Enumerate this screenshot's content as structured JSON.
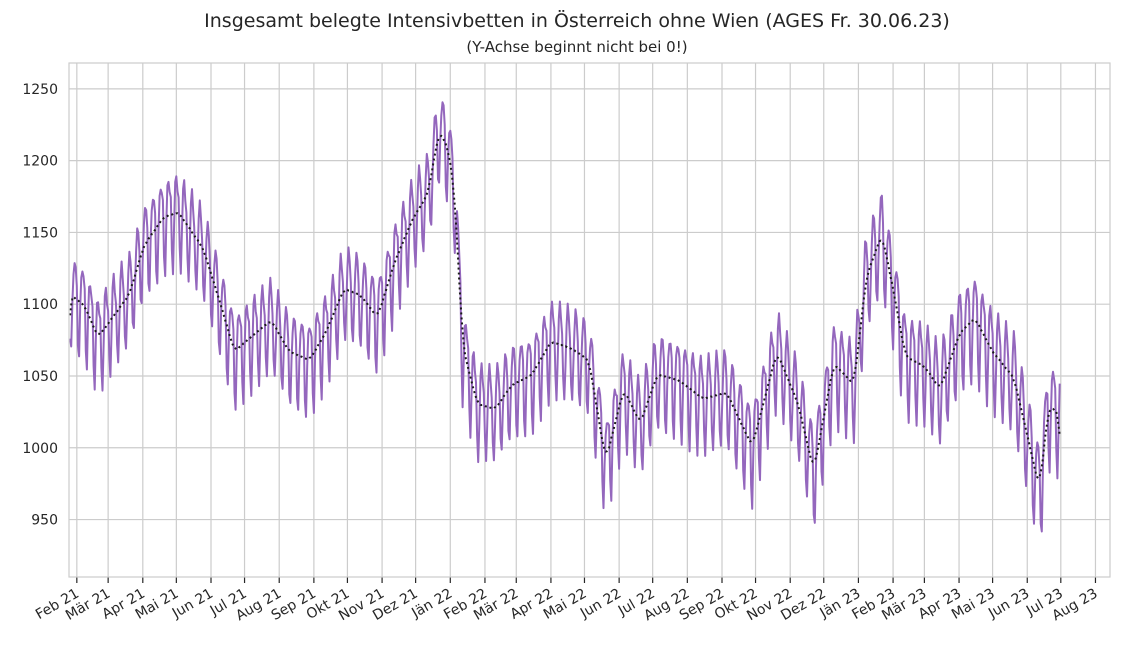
{
  "chart_data": {
    "type": "line",
    "title": "Insgesamt belegte Intensivbetten in Österreich ohne Wien (AGES Fr. 30.06.23)",
    "subtitle": "(Y-Achse beginnt nicht bei 0!)",
    "xlabel": "",
    "ylabel": "",
    "ylim": [
      910,
      1268
    ],
    "xlim": [
      "2021-01-25",
      "2023-08-14"
    ],
    "grid": true,
    "yticks": [
      950,
      1000,
      1050,
      1100,
      1150,
      1200,
      1250
    ],
    "xticks": [
      {
        "date": "2021-02-01",
        "label": "Feb 21"
      },
      {
        "date": "2021-03-01",
        "label": "Mär 21"
      },
      {
        "date": "2021-04-01",
        "label": "Apr 21"
      },
      {
        "date": "2021-05-01",
        "label": "Mai 21"
      },
      {
        "date": "2021-06-01",
        "label": "Jun 21"
      },
      {
        "date": "2021-07-01",
        "label": "Jul 21"
      },
      {
        "date": "2021-08-01",
        "label": "Aug 21"
      },
      {
        "date": "2021-09-01",
        "label": "Sep 21"
      },
      {
        "date": "2021-10-01",
        "label": "Okt 21"
      },
      {
        "date": "2021-11-01",
        "label": "Nov 21"
      },
      {
        "date": "2021-12-01",
        "label": "Dez 21"
      },
      {
        "date": "2022-01-01",
        "label": "Jän 22"
      },
      {
        "date": "2022-02-01",
        "label": "Feb 22"
      },
      {
        "date": "2022-03-01",
        "label": "Mär 22"
      },
      {
        "date": "2022-04-01",
        "label": "Apr 22"
      },
      {
        "date": "2022-05-01",
        "label": "Mai 22"
      },
      {
        "date": "2022-06-01",
        "label": "Jun 22"
      },
      {
        "date": "2022-07-01",
        "label": "Jul 22"
      },
      {
        "date": "2022-08-01",
        "label": "Aug 22"
      },
      {
        "date": "2022-09-01",
        "label": "Sep 22"
      },
      {
        "date": "2022-10-01",
        "label": "Okt 22"
      },
      {
        "date": "2022-11-01",
        "label": "Nov 22"
      },
      {
        "date": "2022-12-01",
        "label": "Dez 22"
      },
      {
        "date": "2023-01-01",
        "label": "Jän 23"
      },
      {
        "date": "2023-02-01",
        "label": "Feb 23"
      },
      {
        "date": "2023-03-01",
        "label": "Mär 23"
      },
      {
        "date": "2023-04-01",
        "label": "Apr 23"
      },
      {
        "date": "2023-05-01",
        "label": "Mai 23"
      },
      {
        "date": "2023-06-01",
        "label": "Jun 23"
      },
      {
        "date": "2023-07-01",
        "label": "Jul 23"
      },
      {
        "date": "2023-08-01",
        "label": "Aug 23"
      }
    ],
    "weekly_pattern": [
      -10,
      18,
      28,
      20,
      8,
      -30,
      -42
    ],
    "series": [
      {
        "style": "solid",
        "color": "#9467bd",
        "values": "weekly trend values with weekday pattern applied"
      },
      {
        "style": "dotted",
        "color": "#1a1a1a",
        "values": "7-day moving average of the solid series"
      }
    ],
    "trend_points": [
      {
        "date": "2021-01-26",
        "value": 1108
      },
      {
        "date": "2021-02-08",
        "value": 1100
      },
      {
        "date": "2021-02-20",
        "value": 1078
      },
      {
        "date": "2021-03-05",
        "value": 1092
      },
      {
        "date": "2021-03-20",
        "value": 1108
      },
      {
        "date": "2021-04-02",
        "value": 1142
      },
      {
        "date": "2021-04-20",
        "value": 1162
      },
      {
        "date": "2021-05-03",
        "value": 1165
      },
      {
        "date": "2021-05-25",
        "value": 1140
      },
      {
        "date": "2021-06-10",
        "value": 1100
      },
      {
        "date": "2021-06-22",
        "value": 1068
      },
      {
        "date": "2021-07-12",
        "value": 1082
      },
      {
        "date": "2021-07-25",
        "value": 1090
      },
      {
        "date": "2021-08-10",
        "value": 1068
      },
      {
        "date": "2021-08-28",
        "value": 1062
      },
      {
        "date": "2021-09-12",
        "value": 1082
      },
      {
        "date": "2021-09-28",
        "value": 1112
      },
      {
        "date": "2021-10-12",
        "value": 1108
      },
      {
        "date": "2021-10-28",
        "value": 1092
      },
      {
        "date": "2021-11-12",
        "value": 1130
      },
      {
        "date": "2021-11-28",
        "value": 1160
      },
      {
        "date": "2021-12-12",
        "value": 1178
      },
      {
        "date": "2021-12-22",
        "value": 1222
      },
      {
        "date": "2021-12-30",
        "value": 1210
      },
      {
        "date": "2022-01-05",
        "value": 1178
      },
      {
        "date": "2022-01-12",
        "value": 1072
      },
      {
        "date": "2022-01-25",
        "value": 1032
      },
      {
        "date": "2022-02-10",
        "value": 1028
      },
      {
        "date": "2022-02-25",
        "value": 1045
      },
      {
        "date": "2022-03-15",
        "value": 1052
      },
      {
        "date": "2022-04-01",
        "value": 1075
      },
      {
        "date": "2022-04-20",
        "value": 1070
      },
      {
        "date": "2022-05-05",
        "value": 1062
      },
      {
        "date": "2022-05-20",
        "value": 992
      },
      {
        "date": "2022-06-05",
        "value": 1042
      },
      {
        "date": "2022-06-20",
        "value": 1018
      },
      {
        "date": "2022-07-05",
        "value": 1052
      },
      {
        "date": "2022-07-25",
        "value": 1048
      },
      {
        "date": "2022-08-15",
        "value": 1035
      },
      {
        "date": "2022-09-05",
        "value": 1040
      },
      {
        "date": "2022-09-28",
        "value": 1002
      },
      {
        "date": "2022-10-20",
        "value": 1068
      },
      {
        "date": "2022-11-08",
        "value": 1032
      },
      {
        "date": "2022-11-22",
        "value": 985
      },
      {
        "date": "2022-12-10",
        "value": 1060
      },
      {
        "date": "2022-12-28",
        "value": 1045
      },
      {
        "date": "2023-01-08",
        "value": 1120
      },
      {
        "date": "2023-01-22",
        "value": 1150
      },
      {
        "date": "2023-02-01",
        "value": 1112
      },
      {
        "date": "2023-02-12",
        "value": 1065
      },
      {
        "date": "2023-03-01",
        "value": 1058
      },
      {
        "date": "2023-03-15",
        "value": 1042
      },
      {
        "date": "2023-04-01",
        "value": 1080
      },
      {
        "date": "2023-04-15",
        "value": 1092
      },
      {
        "date": "2023-05-01",
        "value": 1068
      },
      {
        "date": "2023-05-20",
        "value": 1050
      },
      {
        "date": "2023-06-01",
        "value": 1010
      },
      {
        "date": "2023-06-12",
        "value": 972
      },
      {
        "date": "2023-06-20",
        "value": 1030
      },
      {
        "date": "2023-06-30",
        "value": 1025
      }
    ]
  }
}
